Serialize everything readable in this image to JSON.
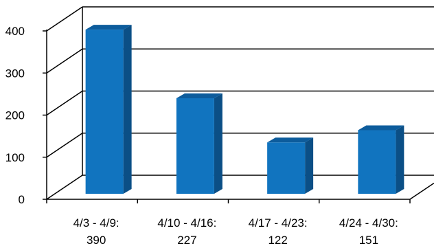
{
  "chart_data": {
    "type": "bar",
    "title": "",
    "xlabel": "",
    "ylabel": "",
    "ylim": [
      0,
      400
    ],
    "y_ticks": [
      "0",
      "100",
      "200",
      "300",
      "400"
    ],
    "categories": [
      "4/3 - 4/9:",
      "4/10 - 4/16:",
      "4/17 - 4/23:",
      "4/24 - 4/30:"
    ],
    "value_labels": [
      "390",
      "227",
      "122",
      "151"
    ],
    "values": [
      390,
      227,
      122,
      151
    ],
    "grid": true,
    "legend": "none",
    "colors": {
      "bar_front": "#1174bf",
      "bar_side": "#0b4f86",
      "bar_top": "#0d5c9c",
      "grid": "#000000"
    }
  }
}
